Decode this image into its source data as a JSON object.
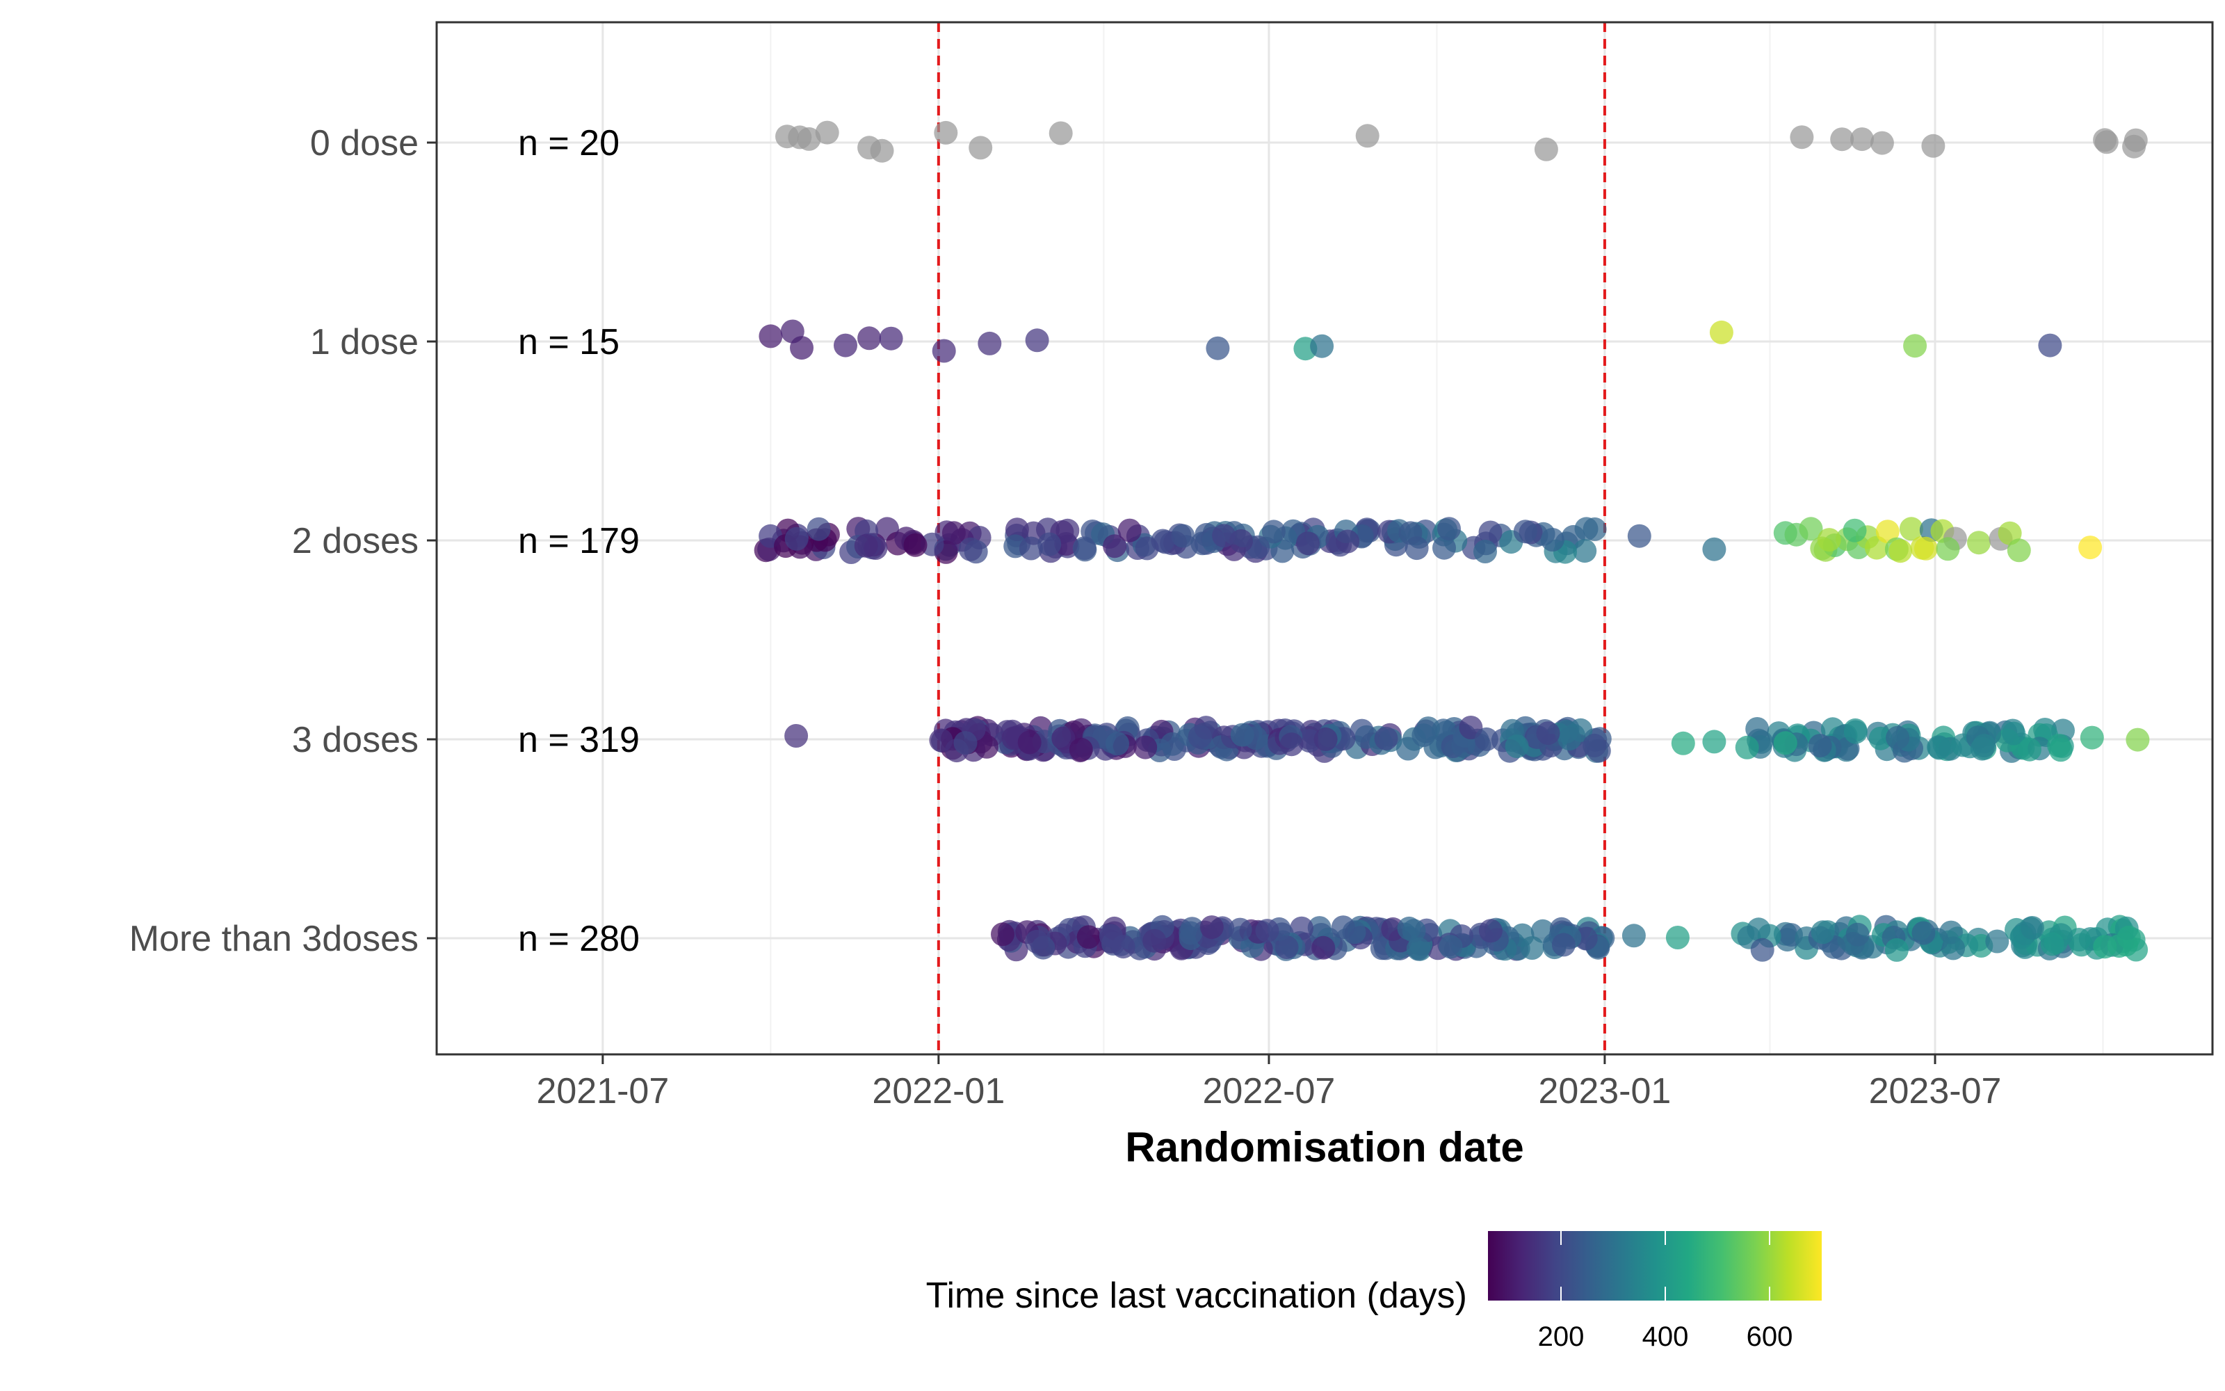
{
  "chart_data": {
    "type": "scatter",
    "xlabel": "Randomisation date",
    "ylabel": "",
    "xlim": [
      "2021-04-01",
      "2023-11-30"
    ],
    "x_ticks": [
      "2021-07",
      "2022-01",
      "2022-07",
      "2023-01",
      "2023-07"
    ],
    "x_tick_dates": [
      "2021-07-01",
      "2022-01-01",
      "2022-07-01",
      "2023-01-01",
      "2023-07-01"
    ],
    "categories": [
      "0 dose",
      "1 dose",
      "2 doses",
      "3 doses",
      "More than 3doses"
    ],
    "counts": [
      "n = 20",
      "n = 15",
      "n = 179",
      "n = 319",
      "n = 280"
    ],
    "reference_lines": [
      "2022-01-01",
      "2023-01-01"
    ],
    "reference_line_color": "#e31a1c",
    "na_color": "#999999",
    "grid": true,
    "legend": {
      "title": "Time since last vaccination (days)",
      "position": "bottom",
      "colormap": "viridis",
      "range": [
        60,
        700
      ],
      "ticks": [
        200,
        400,
        600
      ]
    },
    "series": [
      {
        "category": "0 dose",
        "points": [
          {
            "x": "2021-10-10",
            "color_value": null
          },
          {
            "x": "2021-10-17",
            "color_value": null
          },
          {
            "x": "2021-10-22",
            "color_value": null
          },
          {
            "x": "2021-11-01",
            "color_value": null
          },
          {
            "x": "2021-11-24",
            "color_value": null
          },
          {
            "x": "2021-12-01",
            "color_value": null
          },
          {
            "x": "2022-01-05",
            "color_value": null
          },
          {
            "x": "2022-01-24",
            "color_value": null
          },
          {
            "x": "2022-03-09",
            "color_value": null
          },
          {
            "x": "2022-08-24",
            "color_value": null
          },
          {
            "x": "2022-11-30",
            "color_value": null
          },
          {
            "x": "2023-04-19",
            "color_value": null
          },
          {
            "x": "2023-05-11",
            "color_value": null
          },
          {
            "x": "2023-05-22",
            "color_value": null
          },
          {
            "x": "2023-06-02",
            "color_value": null
          },
          {
            "x": "2023-06-30",
            "color_value": null
          },
          {
            "x": "2023-10-02",
            "color_value": null
          },
          {
            "x": "2023-10-03",
            "color_value": null
          },
          {
            "x": "2023-10-18",
            "color_value": null
          },
          {
            "x": "2023-10-19",
            "color_value": null
          }
        ]
      },
      {
        "category": "1 dose",
        "points": [
          {
            "x": "2021-10-01",
            "color_value": 110
          },
          {
            "x": "2021-10-13",
            "color_value": 120
          },
          {
            "x": "2021-10-18",
            "color_value": 115
          },
          {
            "x": "2021-11-11",
            "color_value": 130
          },
          {
            "x": "2021-11-24",
            "color_value": 125
          },
          {
            "x": "2021-12-06",
            "color_value": 135
          },
          {
            "x": "2022-01-04",
            "color_value": 140
          },
          {
            "x": "2022-01-29",
            "color_value": 150
          },
          {
            "x": "2022-02-24",
            "color_value": 160
          },
          {
            "x": "2022-06-03",
            "color_value": 230
          },
          {
            "x": "2022-07-21",
            "color_value": 420
          },
          {
            "x": "2022-07-30",
            "color_value": 300
          },
          {
            "x": "2023-03-06",
            "color_value": 650
          },
          {
            "x": "2023-06-20",
            "color_value": 580
          },
          {
            "x": "2023-09-02",
            "color_value": 200
          }
        ]
      },
      {
        "category": "2 doses",
        "band": {
          "start": "2021-09-28",
          "end": "2022-12-31",
          "count": 150,
          "seed": 21
        },
        "points": [
          {
            "x": "2023-01-20",
            "color_value": 230
          },
          {
            "x": "2023-03-02",
            "color_value": 300
          },
          {
            "x": "2023-04-10",
            "color_value": 520
          },
          {
            "x": "2023-04-16",
            "color_value": 540
          },
          {
            "x": "2023-04-24",
            "color_value": 560
          },
          {
            "x": "2023-05-02",
            "color_value": 600
          },
          {
            "x": "2023-05-07",
            "color_value": 520
          },
          {
            "x": "2023-05-14",
            "color_value": 580
          },
          {
            "x": "2023-05-20",
            "color_value": 540
          },
          {
            "x": "2023-05-25",
            "color_value": 600
          },
          {
            "x": "2023-05-30",
            "color_value": 620
          },
          {
            "x": "2023-06-05",
            "color_value": 680
          },
          {
            "x": "2023-06-10",
            "color_value": 560
          },
          {
            "x": "2023-06-18",
            "color_value": 610
          },
          {
            "x": "2023-06-24",
            "color_value": 650
          },
          {
            "x": "2023-06-29",
            "color_value": 300
          },
          {
            "x": "2023-07-05",
            "color_value": 620
          },
          {
            "x": "2023-07-12",
            "color_value": null
          },
          {
            "x": "2023-07-25",
            "color_value": 600
          },
          {
            "x": "2023-08-06",
            "color_value": null
          },
          {
            "x": "2023-08-11",
            "color_value": 610
          },
          {
            "x": "2023-08-16",
            "color_value": 580
          },
          {
            "x": "2023-09-24",
            "color_value": 700
          },
          {
            "x": "2023-06-12",
            "color_value": 630
          },
          {
            "x": "2023-05-18",
            "color_value": 500
          },
          {
            "x": "2023-04-30",
            "color_value": 590
          },
          {
            "x": "2023-06-26",
            "color_value": 660
          },
          {
            "x": "2023-07-08",
            "color_value": 570
          },
          {
            "x": "2023-05-04",
            "color_value": 610
          }
        ]
      },
      {
        "category": "3 doses",
        "band": {
          "start": "2021-12-31",
          "end": "2022-12-31",
          "count": 235,
          "seed": 33
        },
        "points": [
          {
            "x": "2021-10-15",
            "color_value": 150
          },
          {
            "x": "2023-02-13",
            "color_value": 450
          },
          {
            "x": "2023-03-02",
            "color_value": 430
          },
          {
            "x": "2023-03-20",
            "color_value": 420
          },
          {
            "x": "2023-04-10",
            "color_value": 440
          },
          {
            "x": "2023-09-25",
            "color_value": 470
          },
          {
            "x": "2023-10-20",
            "color_value": 580
          }
        ],
        "band2": {
          "start": "2023-03-25",
          "end": "2023-09-15",
          "count": 77,
          "seed": 35
        }
      },
      {
        "category": "More than 3doses",
        "band": {
          "start": "2022-02-05",
          "end": "2022-12-31",
          "count": 190,
          "seed": 44
        },
        "points": [
          {
            "x": "2023-01-17",
            "color_value": 300
          },
          {
            "x": "2023-02-10",
            "color_value": 420
          }
        ],
        "band2": {
          "start": "2023-03-15",
          "end": "2023-10-20",
          "count": 88,
          "seed": 46
        }
      }
    ]
  }
}
